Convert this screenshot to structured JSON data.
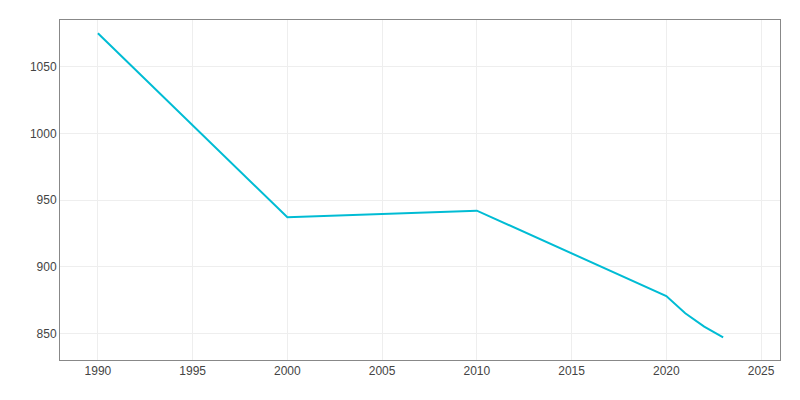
{
  "chart_data": {
    "type": "line",
    "x": [
      1990,
      2000,
      2010,
      2020,
      2021,
      2022,
      2023
    ],
    "values": [
      1075,
      937,
      942,
      878,
      865,
      855,
      847
    ],
    "color": "#00BCD4",
    "xlim": [
      1988,
      2026
    ],
    "xticks": [
      1990,
      1995,
      2000,
      2005,
      2010,
      2015,
      2020,
      2025
    ],
    "ylim": [
      830,
      1085
    ],
    "yticks": [
      850,
      900,
      950,
      1000,
      1050
    ],
    "grid": true
  }
}
